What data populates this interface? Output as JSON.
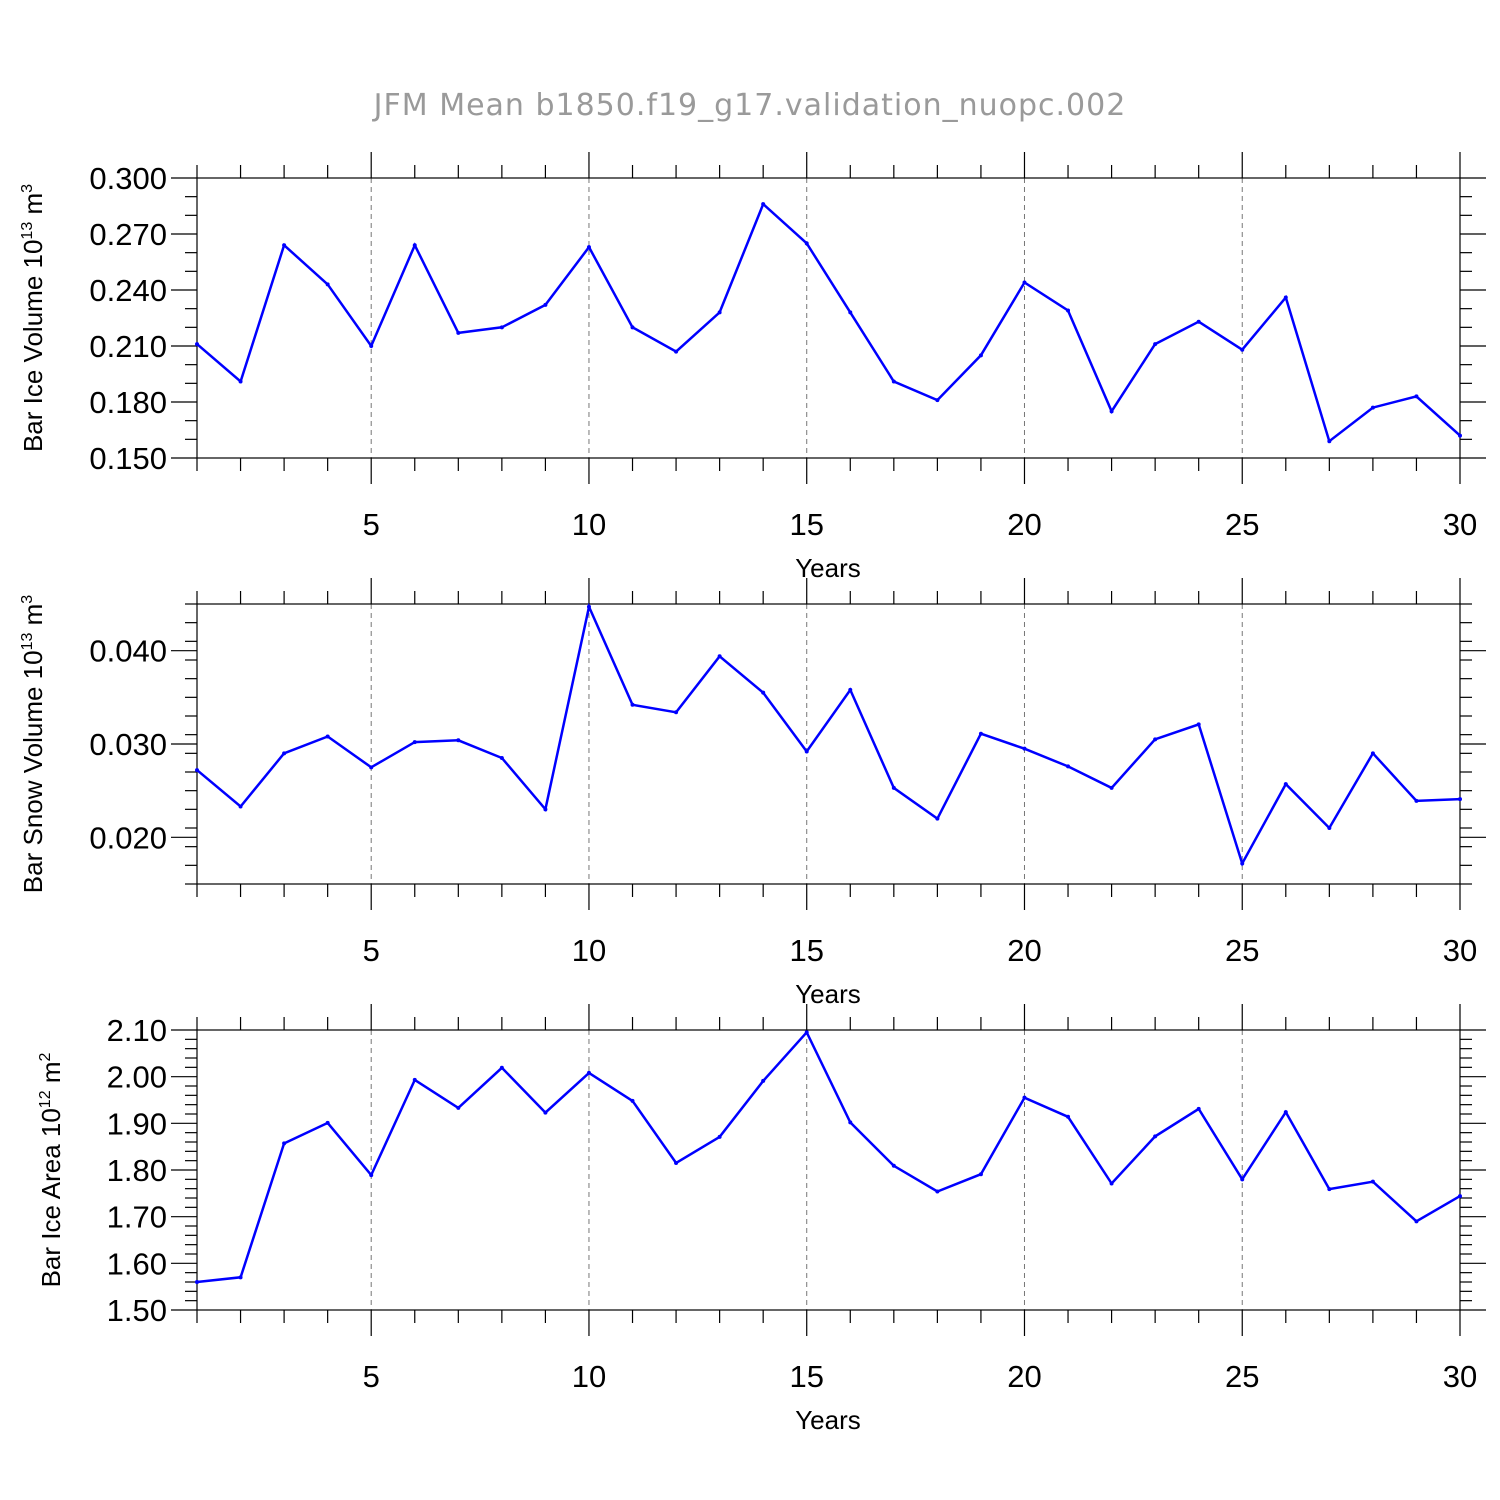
{
  "title": "JFM Mean b1850.f19_g17.validation_nuopc.002",
  "chart_data": [
    {
      "type": "line",
      "ylabel": "Bar Ice Volume 10",
      "ylabel_exp": "13",
      "ylabel_unit": "m",
      "ylabel_unit_exp": "3",
      "xlabel": "Years",
      "xlim": [
        1,
        30
      ],
      "ylim": [
        0.15,
        0.3
      ],
      "yticks": [
        0.15,
        0.18,
        0.21,
        0.24,
        0.27,
        0.3
      ],
      "ytick_labels": [
        "0.150",
        "0.180",
        "0.210",
        "0.240",
        "0.270",
        "0.300"
      ],
      "yminor_step": 0.01,
      "xticks": [
        5,
        10,
        15,
        20,
        25,
        30
      ],
      "xtick_labels": [
        "5",
        "10",
        "15",
        "20",
        "25",
        "30"
      ],
      "grid_x": [
        5,
        10,
        15,
        20,
        25
      ],
      "color": "#0000ff",
      "x": [
        1,
        2,
        3,
        4,
        5,
        6,
        7,
        8,
        9,
        10,
        11,
        12,
        13,
        14,
        15,
        16,
        17,
        18,
        19,
        20,
        21,
        22,
        23,
        24,
        25,
        26,
        27,
        28,
        29,
        30
      ],
      "y": [
        0.211,
        0.191,
        0.264,
        0.243,
        0.21,
        0.264,
        0.217,
        0.22,
        0.232,
        0.263,
        0.22,
        0.207,
        0.228,
        0.286,
        0.265,
        0.228,
        0.191,
        0.181,
        0.205,
        0.244,
        0.229,
        0.175,
        0.211,
        0.223,
        0.208,
        0.236,
        0.159,
        0.177,
        0.183,
        0.162
      ]
    },
    {
      "type": "line",
      "ylabel": "Bar Snow Volume 10",
      "ylabel_exp": "13",
      "ylabel_unit": "m",
      "ylabel_unit_exp": "3",
      "xlabel": "Years",
      "xlim": [
        1,
        30
      ],
      "ylim": [
        0.015,
        0.045
      ],
      "yticks": [
        0.02,
        0.03,
        0.04
      ],
      "ytick_labels": [
        "0.020",
        "0.030",
        "0.040"
      ],
      "yminor_step": 0.002,
      "xticks": [
        5,
        10,
        15,
        20,
        25,
        30
      ],
      "xtick_labels": [
        "5",
        "10",
        "15",
        "20",
        "25",
        "30"
      ],
      "grid_x": [
        5,
        10,
        15,
        20,
        25
      ],
      "color": "#0000ff",
      "x": [
        1,
        2,
        3,
        4,
        5,
        6,
        7,
        8,
        9,
        10,
        11,
        12,
        13,
        14,
        15,
        16,
        17,
        18,
        19,
        20,
        21,
        22,
        23,
        24,
        25,
        26,
        27,
        28,
        29,
        30
      ],
      "y": [
        0.0272,
        0.0233,
        0.029,
        0.0308,
        0.0275,
        0.0302,
        0.0304,
        0.0285,
        0.023,
        0.0447,
        0.0342,
        0.0334,
        0.0394,
        0.0355,
        0.0292,
        0.0358,
        0.0253,
        0.022,
        0.0311,
        0.0295,
        0.0276,
        0.0253,
        0.0305,
        0.0321,
        0.0172,
        0.0257,
        0.021,
        0.029,
        0.0239,
        0.0241
      ]
    },
    {
      "type": "line",
      "ylabel": "Bar Ice Area 10",
      "ylabel_exp": "12",
      "ylabel_unit": "m",
      "ylabel_unit_exp": "2",
      "xlabel": "Years",
      "xlim": [
        1,
        30
      ],
      "ylim": [
        1.5,
        2.1
      ],
      "yticks": [
        1.5,
        1.6,
        1.7,
        1.8,
        1.9,
        2.0,
        2.1
      ],
      "ytick_labels": [
        "1.50",
        "1.60",
        "1.70",
        "1.80",
        "1.90",
        "2.00",
        "2.10"
      ],
      "yminor_step": 0.02,
      "xticks": [
        5,
        10,
        15,
        20,
        25,
        30
      ],
      "xtick_labels": [
        "5",
        "10",
        "15",
        "20",
        "25",
        "30"
      ],
      "grid_x": [
        5,
        10,
        15,
        20,
        25
      ],
      "color": "#0000ff",
      "x": [
        1,
        2,
        3,
        4,
        5,
        6,
        7,
        8,
        9,
        10,
        11,
        12,
        13,
        14,
        15,
        16,
        17,
        18,
        19,
        20,
        21,
        22,
        23,
        24,
        25,
        26,
        27,
        28,
        29,
        30
      ],
      "y": [
        1.56,
        1.57,
        1.857,
        1.901,
        1.789,
        1.993,
        1.933,
        2.019,
        1.923,
        2.008,
        1.948,
        1.815,
        1.871,
        1.991,
        2.095,
        1.902,
        1.809,
        1.754,
        1.791,
        1.955,
        1.914,
        1.771,
        1.872,
        1.931,
        1.78,
        1.924,
        1.759,
        1.775,
        1.69,
        1.744
      ]
    }
  ]
}
